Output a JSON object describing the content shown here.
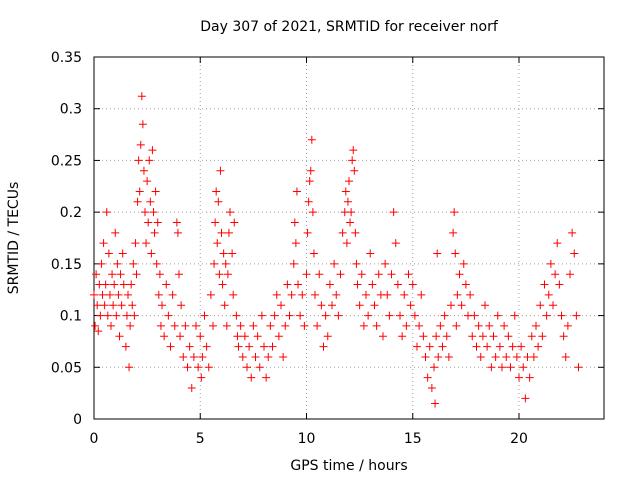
{
  "chart_data": {
    "type": "scatter",
    "title": "Day 307 of 2021, SRMTID for receiver norf",
    "xlabel": "GPS time / hours",
    "ylabel": "SRMTID / TECUs",
    "xlim": [
      0,
      24
    ],
    "ylim": [
      0,
      0.35
    ],
    "xticks": [
      0,
      5,
      10,
      15,
      20
    ],
    "xtick_labels": [
      "0",
      "5",
      "10",
      "15",
      "20"
    ],
    "yticks": [
      0,
      0.05,
      0.1,
      0.15,
      0.2,
      0.25,
      0.3,
      0.35
    ],
    "ytick_labels": [
      "0",
      "0.05",
      "0.1",
      "0.15",
      "0.2",
      "0.25",
      "0.3",
      "0.35"
    ],
    "grid": true,
    "marker": "plus",
    "marker_color": "#ff0000",
    "series": [
      {
        "name": "SRMTID",
        "points": [
          [
            0.0,
            0.12
          ],
          [
            0.05,
            0.09
          ],
          [
            0.1,
            0.14
          ],
          [
            0.15,
            0.11
          ],
          [
            0.2,
            0.085
          ],
          [
            0.25,
            0.13
          ],
          [
            0.3,
            0.1
          ],
          [
            0.35,
            0.15
          ],
          [
            0.4,
            0.12
          ],
          [
            0.45,
            0.17
          ],
          [
            0.5,
            0.11
          ],
          [
            0.55,
            0.13
          ],
          [
            0.6,
            0.2
          ],
          [
            0.65,
            0.1
          ],
          [
            0.7,
            0.16
          ],
          [
            0.75,
            0.12
          ],
          [
            0.8,
            0.09
          ],
          [
            0.85,
            0.14
          ],
          [
            0.9,
            0.11
          ],
          [
            0.95,
            0.13
          ],
          [
            1.0,
            0.18
          ],
          [
            1.05,
            0.1
          ],
          [
            1.1,
            0.15
          ],
          [
            1.15,
            0.12
          ],
          [
            1.2,
            0.08
          ],
          [
            1.25,
            0.14
          ],
          [
            1.3,
            0.11
          ],
          [
            1.35,
            0.16
          ],
          [
            1.4,
            0.13
          ],
          [
            1.5,
            0.07
          ],
          [
            1.55,
            0.1
          ],
          [
            1.6,
            0.12
          ],
          [
            1.65,
            0.05
          ],
          [
            1.7,
            0.09
          ],
          [
            1.75,
            0.13
          ],
          [
            1.8,
            0.11
          ],
          [
            1.85,
            0.15
          ],
          [
            1.9,
            0.1
          ],
          [
            1.95,
            0.17
          ],
          [
            2.0,
            0.14
          ],
          [
            2.05,
            0.21
          ],
          [
            2.1,
            0.25
          ],
          [
            2.15,
            0.22
          ],
          [
            2.2,
            0.265
          ],
          [
            2.25,
            0.312
          ],
          [
            2.3,
            0.285
          ],
          [
            2.35,
            0.24
          ],
          [
            2.4,
            0.2
          ],
          [
            2.45,
            0.17
          ],
          [
            2.5,
            0.23
          ],
          [
            2.55,
            0.19
          ],
          [
            2.6,
            0.25
          ],
          [
            2.65,
            0.21
          ],
          [
            2.7,
            0.16
          ],
          [
            2.75,
            0.26
          ],
          [
            2.8,
            0.2
          ],
          [
            2.85,
            0.18
          ],
          [
            2.9,
            0.22
          ],
          [
            2.95,
            0.15
          ],
          [
            3.0,
            0.19
          ],
          [
            3.05,
            0.12
          ],
          [
            3.1,
            0.14
          ],
          [
            3.15,
            0.09
          ],
          [
            3.2,
            0.11
          ],
          [
            3.3,
            0.08
          ],
          [
            3.4,
            0.13
          ],
          [
            3.5,
            0.1
          ],
          [
            3.6,
            0.07
          ],
          [
            3.7,
            0.12
          ],
          [
            3.8,
            0.09
          ],
          [
            3.9,
            0.19
          ],
          [
            3.95,
            0.18
          ],
          [
            4.0,
            0.14
          ],
          [
            4.05,
            0.08
          ],
          [
            4.1,
            0.11
          ],
          [
            4.2,
            0.06
          ],
          [
            4.3,
            0.09
          ],
          [
            4.4,
            0.05
          ],
          [
            4.5,
            0.07
          ],
          [
            4.6,
            0.03
          ],
          [
            4.7,
            0.06
          ],
          [
            4.8,
            0.09
          ],
          [
            4.9,
            0.05
          ],
          [
            5.0,
            0.08
          ],
          [
            5.05,
            0.04
          ],
          [
            5.1,
            0.06
          ],
          [
            5.2,
            0.1
          ],
          [
            5.3,
            0.07
          ],
          [
            5.4,
            0.05
          ],
          [
            5.5,
            0.12
          ],
          [
            5.6,
            0.09
          ],
          [
            5.65,
            0.15
          ],
          [
            5.7,
            0.19
          ],
          [
            5.75,
            0.22
          ],
          [
            5.8,
            0.17
          ],
          [
            5.85,
            0.21
          ],
          [
            5.9,
            0.14
          ],
          [
            5.95,
            0.24
          ],
          [
            6.0,
            0.18
          ],
          [
            6.05,
            0.13
          ],
          [
            6.1,
            0.16
          ],
          [
            6.15,
            0.11
          ],
          [
            6.2,
            0.15
          ],
          [
            6.25,
            0.09
          ],
          [
            6.3,
            0.14
          ],
          [
            6.35,
            0.18
          ],
          [
            6.4,
            0.2
          ],
          [
            6.5,
            0.16
          ],
          [
            6.55,
            0.12
          ],
          [
            6.6,
            0.19
          ],
          [
            6.7,
            0.1
          ],
          [
            6.75,
            0.08
          ],
          [
            6.8,
            0.07
          ],
          [
            6.9,
            0.09
          ],
          [
            7.0,
            0.06
          ],
          [
            7.1,
            0.08
          ],
          [
            7.2,
            0.05
          ],
          [
            7.3,
            0.07
          ],
          [
            7.4,
            0.04
          ],
          [
            7.5,
            0.09
          ],
          [
            7.6,
            0.06
          ],
          [
            7.7,
            0.08
          ],
          [
            7.8,
            0.05
          ],
          [
            7.9,
            0.1
          ],
          [
            8.0,
            0.07
          ],
          [
            8.1,
            0.04
          ],
          [
            8.2,
            0.06
          ],
          [
            8.3,
            0.09
          ],
          [
            8.4,
            0.07
          ],
          [
            8.5,
            0.1
          ],
          [
            8.6,
            0.12
          ],
          [
            8.7,
            0.08
          ],
          [
            8.8,
            0.11
          ],
          [
            8.9,
            0.06
          ],
          [
            9.0,
            0.09
          ],
          [
            9.1,
            0.13
          ],
          [
            9.2,
            0.1
          ],
          [
            9.3,
            0.12
          ],
          [
            9.4,
            0.15
          ],
          [
            9.45,
            0.19
          ],
          [
            9.5,
            0.17
          ],
          [
            9.55,
            0.22
          ],
          [
            9.6,
            0.13
          ],
          [
            9.7,
            0.1
          ],
          [
            9.8,
            0.12
          ],
          [
            9.9,
            0.09
          ],
          [
            10.0,
            0.14
          ],
          [
            10.05,
            0.18
          ],
          [
            10.1,
            0.21
          ],
          [
            10.15,
            0.23
          ],
          [
            10.2,
            0.24
          ],
          [
            10.25,
            0.27
          ],
          [
            10.3,
            0.2
          ],
          [
            10.35,
            0.16
          ],
          [
            10.4,
            0.12
          ],
          [
            10.5,
            0.09
          ],
          [
            10.6,
            0.14
          ],
          [
            10.7,
            0.11
          ],
          [
            10.8,
            0.07
          ],
          [
            10.9,
            0.1
          ],
          [
            11.0,
            0.08
          ],
          [
            11.1,
            0.13
          ],
          [
            11.2,
            0.11
          ],
          [
            11.3,
            0.15
          ],
          [
            11.4,
            0.12
          ],
          [
            11.5,
            0.1
          ],
          [
            11.6,
            0.14
          ],
          [
            11.7,
            0.18
          ],
          [
            11.8,
            0.2
          ],
          [
            11.85,
            0.22
          ],
          [
            11.9,
            0.17
          ],
          [
            11.95,
            0.21
          ],
          [
            12.0,
            0.23
          ],
          [
            12.05,
            0.19
          ],
          [
            12.1,
            0.2
          ],
          [
            12.15,
            0.25
          ],
          [
            12.2,
            0.26
          ],
          [
            12.25,
            0.24
          ],
          [
            12.3,
            0.18
          ],
          [
            12.35,
            0.15
          ],
          [
            12.4,
            0.13
          ],
          [
            12.5,
            0.11
          ],
          [
            12.6,
            0.14
          ],
          [
            12.7,
            0.09
          ],
          [
            12.8,
            0.12
          ],
          [
            12.9,
            0.1
          ],
          [
            13.0,
            0.16
          ],
          [
            13.1,
            0.13
          ],
          [
            13.2,
            0.11
          ],
          [
            13.3,
            0.09
          ],
          [
            13.4,
            0.14
          ],
          [
            13.5,
            0.12
          ],
          [
            13.6,
            0.08
          ],
          [
            13.7,
            0.15
          ],
          [
            13.8,
            0.12
          ],
          [
            13.9,
            0.1
          ],
          [
            14.0,
            0.14
          ],
          [
            14.1,
            0.2
          ],
          [
            14.2,
            0.17
          ],
          [
            14.3,
            0.13
          ],
          [
            14.4,
            0.1
          ],
          [
            14.5,
            0.08
          ],
          [
            14.6,
            0.12
          ],
          [
            14.7,
            0.09
          ],
          [
            14.8,
            0.14
          ],
          [
            14.9,
            0.11
          ],
          [
            15.0,
            0.13
          ],
          [
            15.1,
            0.1
          ],
          [
            15.2,
            0.07
          ],
          [
            15.3,
            0.09
          ],
          [
            15.4,
            0.12
          ],
          [
            15.5,
            0.08
          ],
          [
            15.6,
            0.06
          ],
          [
            15.7,
            0.04
          ],
          [
            15.8,
            0.07
          ],
          [
            15.9,
            0.03
          ],
          [
            16.0,
            0.05
          ],
          [
            16.05,
            0.015
          ],
          [
            16.1,
            0.08
          ],
          [
            16.15,
            0.16
          ],
          [
            16.2,
            0.06
          ],
          [
            16.3,
            0.09
          ],
          [
            16.4,
            0.07
          ],
          [
            16.5,
            0.1
          ],
          [
            16.6,
            0.08
          ],
          [
            16.7,
            0.06
          ],
          [
            16.8,
            0.11
          ],
          [
            16.9,
            0.18
          ],
          [
            16.95,
            0.2
          ],
          [
            17.0,
            0.16
          ],
          [
            17.05,
            0.09
          ],
          [
            17.1,
            0.12
          ],
          [
            17.2,
            0.14
          ],
          [
            17.3,
            0.11
          ],
          [
            17.4,
            0.15
          ],
          [
            17.5,
            0.13
          ],
          [
            17.6,
            0.1
          ],
          [
            17.7,
            0.12
          ],
          [
            17.8,
            0.08
          ],
          [
            17.9,
            0.1
          ],
          [
            18.0,
            0.07
          ],
          [
            18.1,
            0.09
          ],
          [
            18.2,
            0.06
          ],
          [
            18.3,
            0.08
          ],
          [
            18.4,
            0.11
          ],
          [
            18.5,
            0.07
          ],
          [
            18.6,
            0.09
          ],
          [
            18.7,
            0.05
          ],
          [
            18.8,
            0.08
          ],
          [
            18.9,
            0.06
          ],
          [
            19.0,
            0.1
          ],
          [
            19.1,
            0.07
          ],
          [
            19.2,
            0.05
          ],
          [
            19.3,
            0.09
          ],
          [
            19.4,
            0.06
          ],
          [
            19.5,
            0.08
          ],
          [
            19.6,
            0.05
          ],
          [
            19.7,
            0.07
          ],
          [
            19.8,
            0.1
          ],
          [
            19.9,
            0.06
          ],
          [
            20.0,
            0.04
          ],
          [
            20.1,
            0.07
          ],
          [
            20.2,
            0.05
          ],
          [
            20.3,
            0.02
          ],
          [
            20.4,
            0.06
          ],
          [
            20.5,
            0.04
          ],
          [
            20.6,
            0.08
          ],
          [
            20.7,
            0.06
          ],
          [
            20.8,
            0.09
          ],
          [
            20.9,
            0.07
          ],
          [
            21.0,
            0.11
          ],
          [
            21.1,
            0.08
          ],
          [
            21.2,
            0.13
          ],
          [
            21.3,
            0.1
          ],
          [
            21.4,
            0.12
          ],
          [
            21.5,
            0.15
          ],
          [
            21.6,
            0.11
          ],
          [
            21.7,
            0.14
          ],
          [
            21.8,
            0.17
          ],
          [
            21.9,
            0.13
          ],
          [
            22.0,
            0.1
          ],
          [
            22.1,
            0.08
          ],
          [
            22.2,
            0.06
          ],
          [
            22.3,
            0.09
          ],
          [
            22.4,
            0.14
          ],
          [
            22.5,
            0.18
          ],
          [
            22.6,
            0.16
          ],
          [
            22.7,
            0.1
          ],
          [
            22.8,
            0.05
          ]
        ]
      }
    ]
  }
}
